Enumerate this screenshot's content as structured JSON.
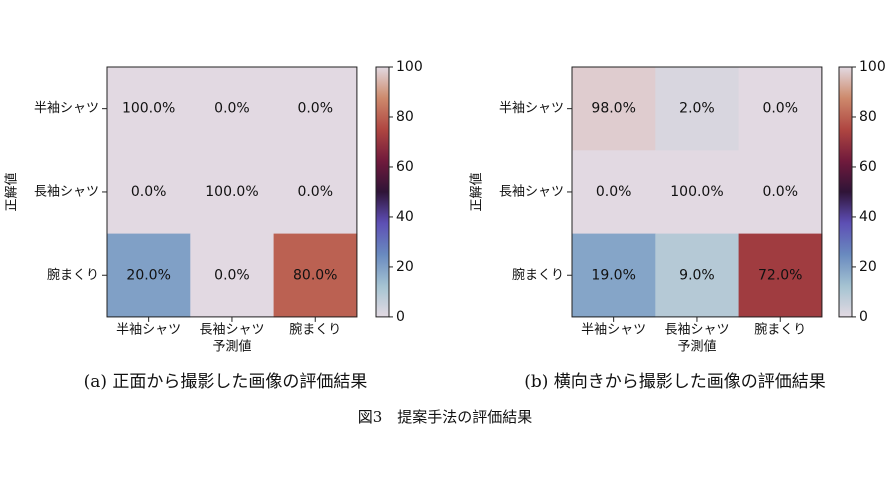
{
  "figure": {
    "caption": "図3　提案手法の評価結果"
  },
  "colorbar": {
    "ticks": [
      "0",
      "20",
      "40",
      "60",
      "80",
      "100"
    ]
  },
  "chart_data": [
    {
      "type": "heatmap",
      "caption": "(a) 正面から撮影した画像の評価結果",
      "xlabel": "予測値",
      "ylabel": "正解値",
      "x_categories": [
        "半袖シャツ",
        "長袖シャツ",
        "腕まくり"
      ],
      "y_categories": [
        "半袖シャツ",
        "長袖シャツ",
        "腕まくり"
      ],
      "values": [
        [
          100.0,
          0.0,
          0.0
        ],
        [
          0.0,
          100.0,
          0.0
        ],
        [
          20.0,
          0.0,
          80.0
        ]
      ],
      "labels": [
        [
          "100.0%",
          "0.0%",
          "0.0%"
        ],
        [
          "0.0%",
          "100.0%",
          "0.0%"
        ],
        [
          "20.0%",
          "0.0%",
          "80.0%"
        ]
      ],
      "colorbar_range": [
        0,
        100
      ],
      "colormap": "twilight"
    },
    {
      "type": "heatmap",
      "caption": "(b) 横向きから撮影した画像の評価結果",
      "xlabel": "予測値",
      "ylabel": "正解値",
      "x_categories": [
        "半袖シャツ",
        "長袖シャツ",
        "腕まくり"
      ],
      "y_categories": [
        "半袖シャツ",
        "長袖シャツ",
        "腕まくり"
      ],
      "values": [
        [
          98.0,
          2.0,
          0.0
        ],
        [
          0.0,
          100.0,
          0.0
        ],
        [
          19.0,
          9.0,
          72.0
        ]
      ],
      "labels": [
        [
          "98.0%",
          "2.0%",
          "0.0%"
        ],
        [
          "0.0%",
          "100.0%",
          "0.0%"
        ],
        [
          "19.0%",
          "9.0%",
          "72.0%"
        ]
      ],
      "colorbar_range": [
        0,
        100
      ],
      "colormap": "twilight"
    }
  ]
}
